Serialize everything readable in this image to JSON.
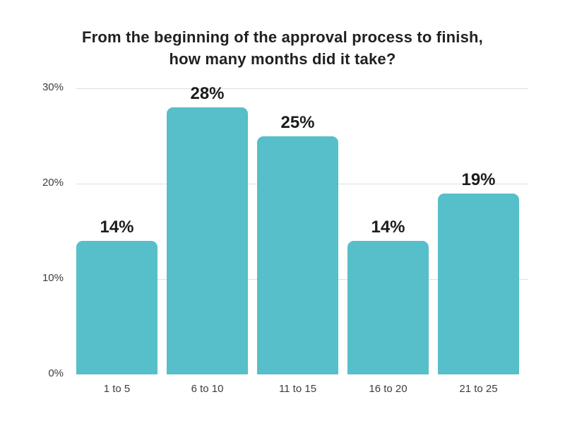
{
  "title": {
    "line1": "From the beginning of the approval process to finish,",
    "line2": "how many months did it take?"
  },
  "chart_data": {
    "type": "bar",
    "title": "From the beginning of the approval process to finish, how many months did it take?",
    "categories": [
      "1 to 5",
      "6 to 10",
      "11 to 15",
      "16 to 20",
      "21 to 25"
    ],
    "values": [
      14,
      28,
      25,
      14,
      19
    ],
    "data_labels": [
      "14%",
      "28%",
      "25%",
      "14%",
      "19%"
    ],
    "xlabel": "",
    "ylabel": "",
    "ylim": [
      0,
      30
    ],
    "y_ticks": [
      {
        "value": 0,
        "label": "0%"
      },
      {
        "value": 10,
        "label": "10%"
      },
      {
        "value": 20,
        "label": "20%"
      },
      {
        "value": 30,
        "label": "30%"
      }
    ],
    "gridline_values": [
      10,
      20,
      30
    ],
    "grid": "horizontal",
    "legend": "none",
    "colors": {
      "bar": "#56BFC9",
      "gridline": "#dedede",
      "title_text": "#212121",
      "data_label_text": "#1c1c1c",
      "axis_label_text": "#3d3d3d",
      "background": "#ffffff"
    }
  }
}
